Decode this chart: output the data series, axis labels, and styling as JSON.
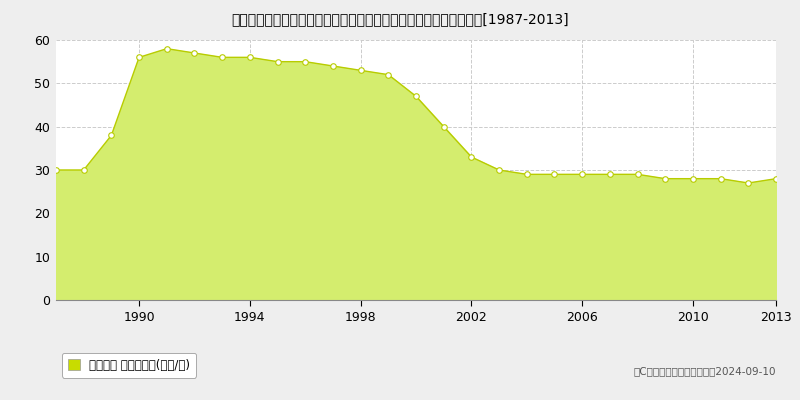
{
  "title": "岡山県倉敷市日ノ出町１丁目３０７番２６外　地価公示　地価推移[1987-2013]",
  "years": [
    1987,
    1988,
    1989,
    1990,
    1991,
    1992,
    1993,
    1994,
    1995,
    1996,
    1997,
    1998,
    1999,
    2000,
    2001,
    2002,
    2003,
    2004,
    2005,
    2006,
    2007,
    2008,
    2009,
    2010,
    2011,
    2012,
    2013
  ],
  "values": [
    30,
    30,
    38,
    56,
    58,
    57,
    56,
    56,
    55,
    55,
    54,
    53,
    52,
    47,
    40,
    33,
    30,
    29,
    29,
    29,
    29,
    29,
    28,
    28,
    28,
    27,
    28
  ],
  "fill_color": "#d4ed6e",
  "line_color": "#b8cc00",
  "marker_color": "#ffffff",
  "marker_edge_color": "#b8cc00",
  "background_color": "#eeeeee",
  "plot_bg_color": "#ffffff",
  "grid_color": "#cccccc",
  "ylim": [
    0,
    60
  ],
  "yticks": [
    0,
    10,
    20,
    30,
    40,
    50,
    60
  ],
  "xticks": [
    1990,
    1994,
    1998,
    2002,
    2006,
    2010,
    2013
  ],
  "xlim_left": 1987,
  "xlim_right": 2013,
  "xlabel": "",
  "ylabel": "",
  "legend_label": "地価公示 平均坪単価(万円/坪)",
  "copyright_text": "（C）土地価格ドットコム　2024-09-10",
  "legend_square_color": "#c8dc00"
}
